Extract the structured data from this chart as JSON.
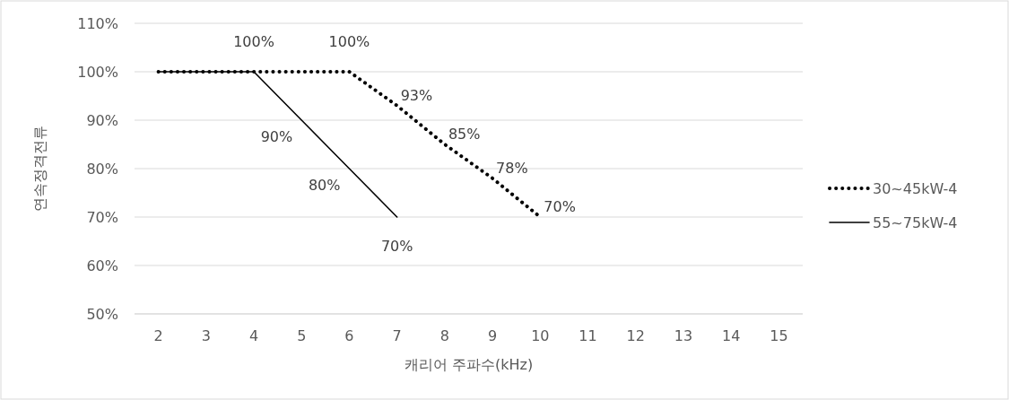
{
  "chart_data": {
    "type": "line",
    "xlabel": "캐리어 주파수(kHz)",
    "ylabel": "연속정격전류",
    "categories": [
      "2",
      "3",
      "4",
      "5",
      "6",
      "7",
      "8",
      "9",
      "10",
      "11",
      "12",
      "13",
      "14",
      "15"
    ],
    "ylim": [
      50,
      110
    ],
    "yticks": [
      {
        "value": 50,
        "label": "50%"
      },
      {
        "value": 60,
        "label": "60%"
      },
      {
        "value": 70,
        "label": "70%"
      },
      {
        "value": 80,
        "label": "80%"
      },
      {
        "value": 90,
        "label": "90%"
      },
      {
        "value": 100,
        "label": "100%"
      },
      {
        "value": 110,
        "label": "110%"
      }
    ],
    "grid": "y",
    "legend": "right",
    "series": [
      {
        "name": "30~45kW-4",
        "color": "#000000",
        "line_style": "dotted",
        "values": [
          100,
          100,
          100,
          100,
          100,
          93,
          85,
          78,
          70,
          null,
          null,
          null,
          null,
          null
        ],
        "value_labels": [
          null,
          null,
          "100%",
          null,
          "100%",
          "93%",
          "85%",
          "78%",
          "70%",
          null,
          null,
          null,
          null,
          null
        ]
      },
      {
        "name": "55~75kW-4",
        "color": "#000000",
        "line_style": "solid",
        "values": [
          100,
          100,
          100,
          90,
          80,
          70,
          null,
          null,
          null,
          null,
          null,
          null,
          null,
          null
        ],
        "value_labels": [
          null,
          null,
          null,
          "90%",
          "80%",
          "70%",
          null,
          null,
          null,
          null,
          null,
          null,
          null,
          null
        ]
      }
    ]
  }
}
